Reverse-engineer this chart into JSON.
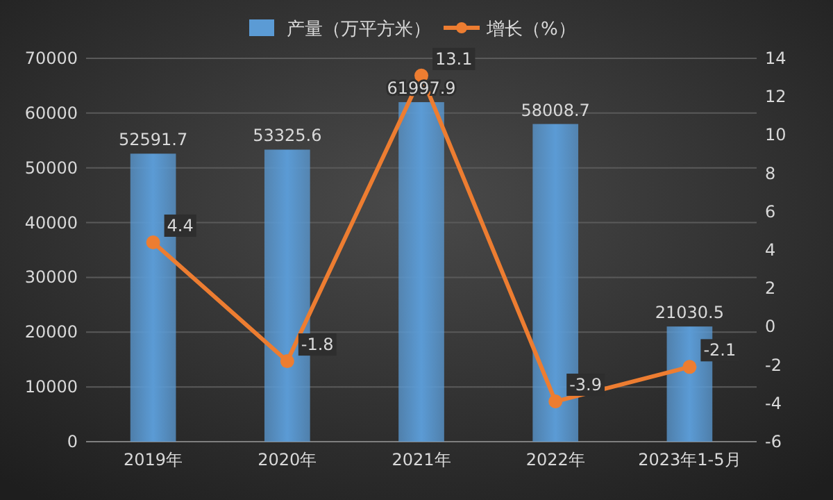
{
  "chart_data": {
    "type": "bar",
    "categories": [
      "2019年",
      "2020年",
      "2021年",
      "2022年",
      "2023年1-5月"
    ],
    "series": [
      {
        "name": "产量（万平方米）",
        "color": "#5b9bd5",
        "values": [
          52591.7,
          53325.6,
          61997.9,
          58008.7,
          21030.5
        ]
      },
      {
        "name": "增长（%）",
        "type": "line",
        "axis": "y2",
        "color": "#ed7d31",
        "values": [
          4.4,
          -1.8,
          13.1,
          -3.9,
          -2.1
        ]
      }
    ],
    "ylim": [
      0,
      70000
    ],
    "yticks": [
      0,
      10000,
      20000,
      30000,
      40000,
      50000,
      60000,
      70000
    ],
    "y2lim": [
      -6,
      14
    ],
    "y2ticks": [
      -6,
      -4,
      -2,
      0,
      2,
      4,
      6,
      8,
      10,
      12,
      14
    ],
    "grid": "y",
    "legend": "top",
    "data_labels": true,
    "marker": "circle"
  }
}
